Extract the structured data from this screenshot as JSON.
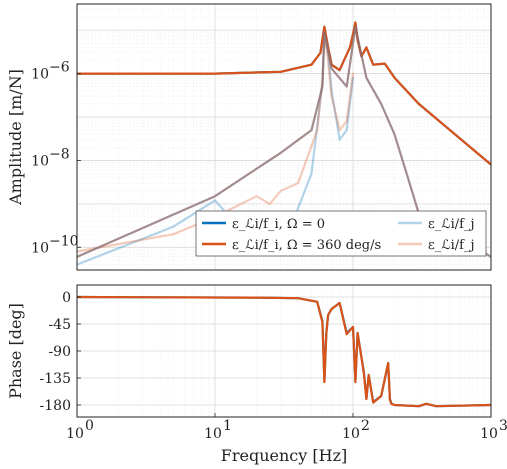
{
  "chart_data": [
    {
      "type": "line",
      "name": "amplitude",
      "xscale": "log",
      "yscale": "log",
      "xlim": [
        1,
        1000
      ],
      "ylim": [
        3e-11,
        4e-05
      ],
      "ylabel": "Amplitude [m/N]",
      "yticks": [
        1e-10,
        1e-08,
        1e-06
      ],
      "ytick_labels": [
        "10",
        "10",
        "10"
      ],
      "ytick_exponents": [
        "−10",
        "−8",
        "−6"
      ],
      "grid": true,
      "legend": {
        "placement": "bottom-right",
        "entries": [
          {
            "label": "ε_ℒi/f_i, Ω = 0",
            "color": "#0072BD",
            "opacity": 1
          },
          {
            "label": "ε_ℒi/f_i, Ω = 360 deg/s",
            "color": "#D95319",
            "opacity": 1
          },
          {
            "label": "ε_ℒi/f_j",
            "color": "#0072BD",
            "opacity": 0.3
          },
          {
            "label": "ε_ℒi/f_j",
            "color": "#D95319",
            "opacity": 0.3
          }
        ]
      },
      "series": [
        {
          "name": "ε_ℒi/f_i, Ω = 0",
          "color": "#0072BD",
          "opacity": 1,
          "x": [
            1,
            10,
            30,
            50,
            58,
            62,
            66,
            70,
            80,
            95,
            100,
            104,
            108,
            115,
            125,
            140,
            170,
            200,
            300,
            1000
          ],
          "y": [
            1e-06,
            1e-06,
            1.1e-06,
            1.6e-06,
            3e-06,
            1.2e-05,
            4e-06,
            1.6e-06,
            1.2e-06,
            4e-06,
            8e-06,
            1.5e-05,
            6e-06,
            2.5e-06,
            4e-06,
            1.6e-06,
            1.7e-06,
            8e-07,
            2e-07,
            8e-09
          ]
        },
        {
          "name": "ε_ℒi/f_i, Ω = 360 deg/s",
          "color": "#D95319",
          "opacity": 1,
          "x": [
            1,
            10,
            30,
            50,
            58,
            62,
            66,
            70,
            80,
            95,
            100,
            104,
            108,
            115,
            125,
            140,
            170,
            200,
            300,
            1000
          ],
          "y": [
            1e-06,
            1e-06,
            1.1e-06,
            1.6e-06,
            3e-06,
            1.2e-05,
            4e-06,
            1.6e-06,
            1.2e-06,
            4e-06,
            8e-06,
            1.5e-05,
            6e-06,
            2.5e-06,
            4e-06,
            1.6e-06,
            1.7e-06,
            8e-07,
            2e-07,
            8e-09
          ]
        },
        {
          "name": "ε_ℒi/f_j",
          "color": "#0072BD",
          "opacity": 0.3,
          "x": [
            1,
            5,
            10,
            20,
            25,
            28,
            32,
            40,
            50,
            60,
            62,
            66,
            70,
            80,
            90,
            100
          ],
          "y": [
            4e-11,
            3e-10,
            1.2e-09,
            1e-10,
            2e-10,
            4e-10,
            1.5e-10,
            8e-10,
            5e-09,
            6e-07,
            8e-06,
            3e-06,
            4e-07,
            3e-08,
            5e-08,
            8e-07
          ]
        },
        {
          "name": "ε_ℒi/f_j",
          "color": "#D95319",
          "opacity": 0.3,
          "x": [
            1,
            5,
            10,
            20,
            25,
            30,
            40,
            55,
            60,
            62,
            66,
            70,
            80,
            90,
            100
          ],
          "y": [
            8e-11,
            2e-10,
            5e-10,
            1.5e-09,
            1e-09,
            2e-09,
            3e-09,
            5e-08,
            7e-07,
            8e-06,
            2e-06,
            3e-07,
            5e-08,
            8e-08,
            1e-06
          ]
        },
        {
          "name": "",
          "color": "#8C6F72",
          "opacity": 0.8,
          "x": [
            1,
            10,
            30,
            50,
            60,
            62,
            70,
            90,
            104,
            125,
            160,
            200,
            250,
            300,
            320,
            340,
            400,
            1000
          ],
          "y": [
            6e-11,
            1.5e-09,
            1.5e-08,
            5e-08,
            5e-07,
            9e-06,
            1.3e-06,
            5e-07,
            1.2e-05,
            8e-07,
            2e-07,
            4e-08,
            4e-09,
            6e-10,
            1.5e-10,
            6e-10,
            4e-10,
            6e-11
          ]
        }
      ]
    },
    {
      "type": "line",
      "name": "phase",
      "xscale": "log",
      "xlim": [
        1,
        1000
      ],
      "ylim": [
        -200,
        20
      ],
      "xlabel": "Frequency [Hz]",
      "ylabel": "Phase [deg]",
      "xticks": [
        1,
        10,
        100,
        1000
      ],
      "xtick_labels": [
        "10",
        "10",
        "10",
        "10"
      ],
      "xtick_exponents": [
        "0",
        "1",
        "2",
        "3"
      ],
      "yticks": [
        0,
        -45,
        -90,
        -135,
        -180
      ],
      "ytick_labels": [
        "0",
        "-45",
        "-90",
        "-135",
        "-180"
      ],
      "grid": true,
      "series": [
        {
          "color": "#0072BD",
          "x": [
            1,
            20,
            40,
            55,
            60,
            62,
            64,
            66,
            70,
            80,
            90,
            100,
            104,
            108,
            115,
            120,
            125,
            130,
            140,
            160,
            180,
            185,
            190,
            200,
            300,
            340,
            400,
            1000
          ],
          "y": [
            0,
            -1,
            -2,
            -8,
            -40,
            -140,
            -60,
            -30,
            -20,
            -10,
            -60,
            -50,
            -140,
            -60,
            -100,
            -125,
            -170,
            -130,
            -175,
            -165,
            -110,
            -170,
            -178,
            -180,
            -182,
            -178,
            -182,
            -180
          ]
        },
        {
          "color": "#D95319",
          "x": [
            1,
            20,
            40,
            55,
            60,
            62,
            64,
            66,
            70,
            80,
            90,
            100,
            104,
            108,
            115,
            120,
            125,
            130,
            140,
            160,
            180,
            185,
            190,
            200,
            300,
            340,
            400,
            1000
          ],
          "y": [
            0,
            -1,
            -2,
            -8,
            -42,
            -142,
            -62,
            -30,
            -20,
            -10,
            -62,
            -50,
            -142,
            -60,
            -100,
            -128,
            -170,
            -130,
            -176,
            -165,
            -110,
            -172,
            -178,
            -180,
            -182,
            -178,
            -182,
            -180
          ]
        }
      ]
    }
  ]
}
